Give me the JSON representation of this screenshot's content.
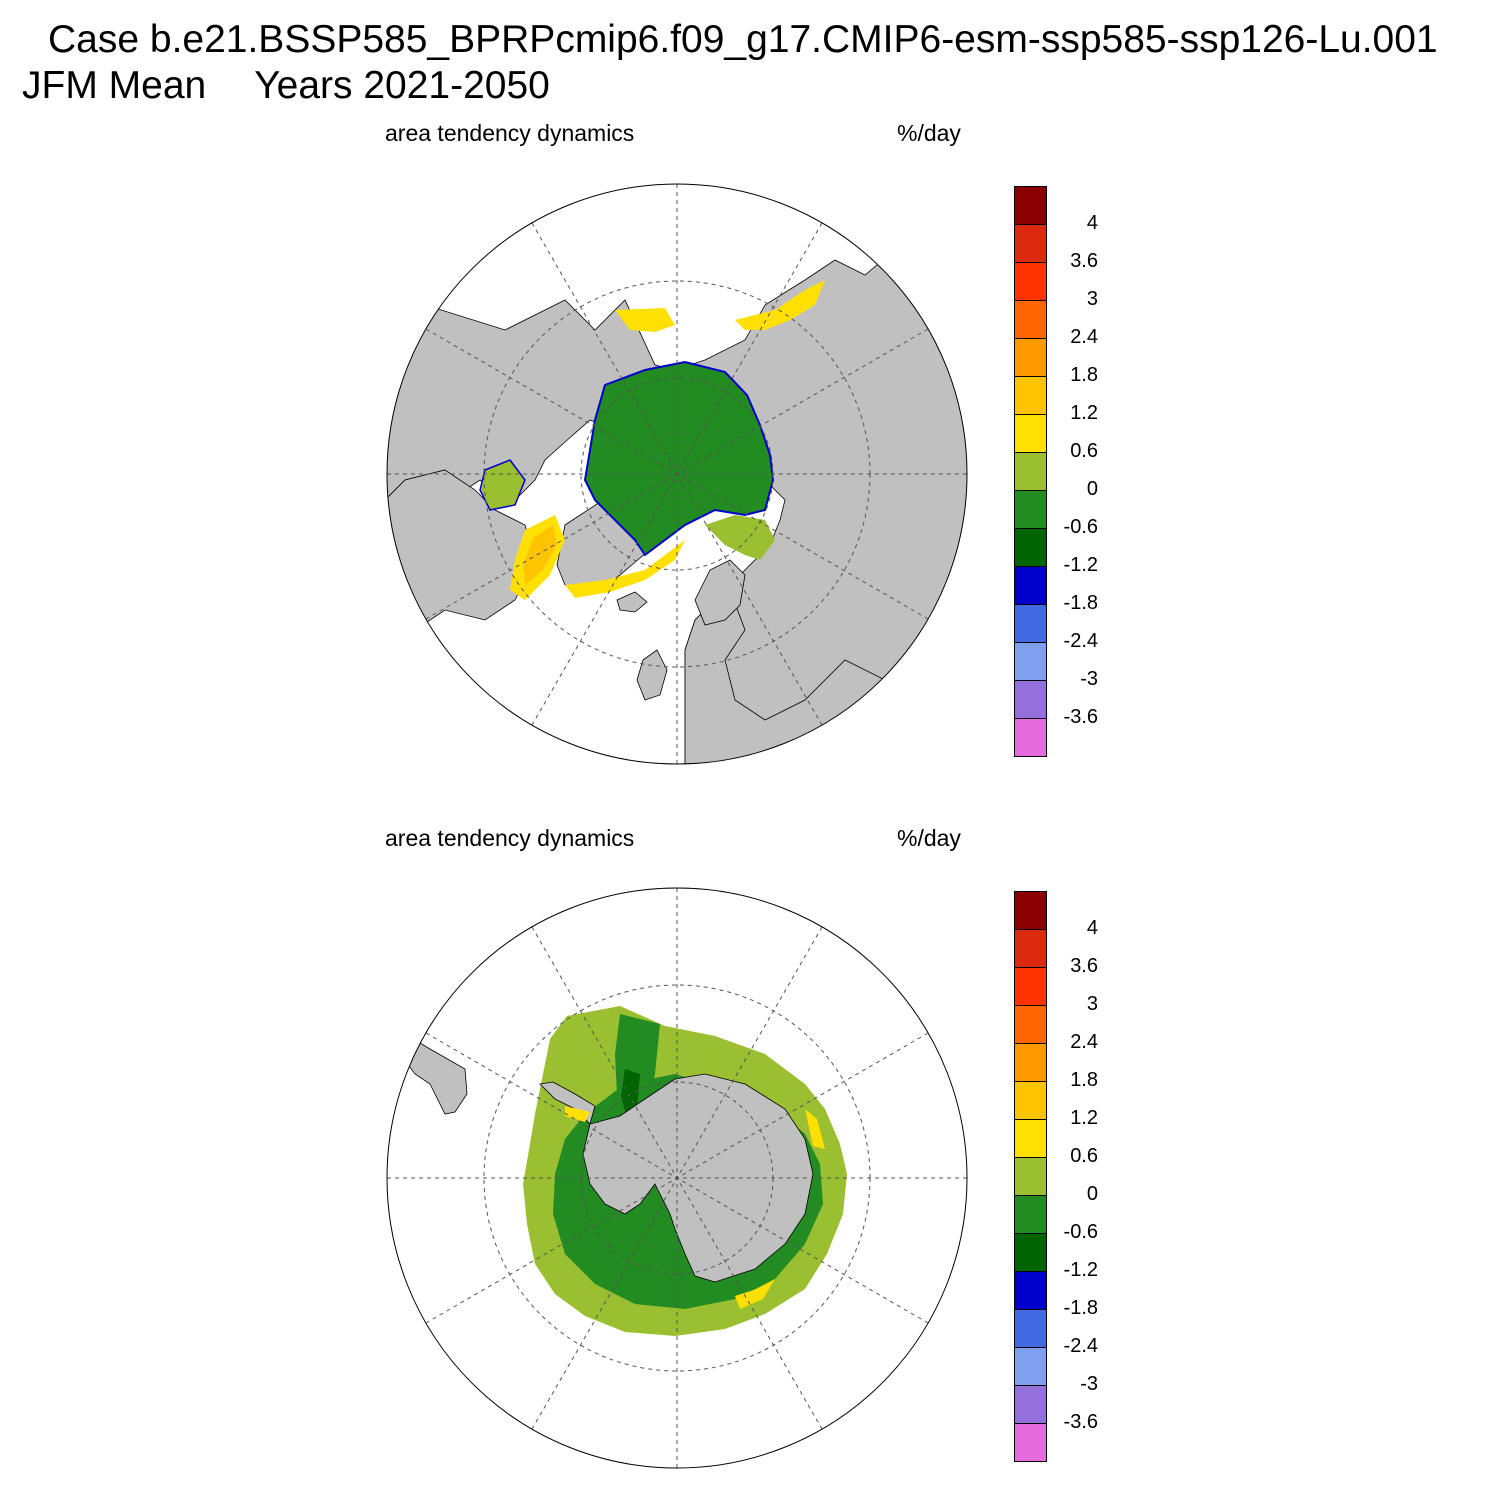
{
  "title": {
    "case": "Case b.e21.BSSP585_BPRPcmip6.f09_g17.CMIP6-esm-ssp585-ssp126-Lu.001",
    "season": "JFM Mean",
    "years": "Years 2021-2050"
  },
  "panels": [
    {
      "id": "north",
      "variable": "area tendency dynamics",
      "units": "%/day",
      "projection": "north polar stereographic"
    },
    {
      "id": "south",
      "variable": "area tendency dynamics",
      "units": "%/day",
      "projection": "south polar stereographic"
    }
  ],
  "colorbar": {
    "labels": [
      "4",
      "3.6",
      "3",
      "2.4",
      "1.8",
      "1.2",
      "0.6",
      "0",
      "-0.6",
      "-1.2",
      "-1.8",
      "-2.4",
      "-3",
      "-3.6"
    ],
    "colors": [
      "#8b0000",
      "#dc2a10",
      "#ff3300",
      "#ff6600",
      "#ff9900",
      "#ffc400",
      "#ffe000",
      "#9abf30",
      "#228b22",
      "#006400",
      "#0000cd",
      "#4169e1",
      "#7fa0f0",
      "#9370db",
      "#e56cdc"
    ]
  },
  "palette": {
    "land": "#c0c0c0",
    "ocean": "#ffffff",
    "ice_main": "#228b22",
    "ice_edge_pos": "#9abf30",
    "ice_edge_yellow": "#ffe000",
    "ice_edge_orange": "#ffc400",
    "ice_loss_blue": "#0000cd",
    "ice_dark": "#006400"
  }
}
